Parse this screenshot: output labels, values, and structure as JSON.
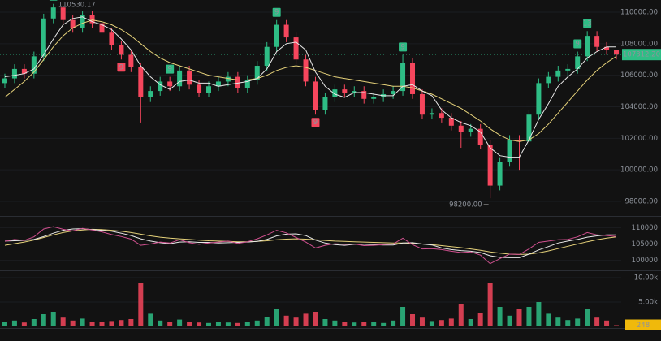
{
  "chart_data": {
    "type": "candlestick",
    "open": [
      105500,
      105800,
      106400,
      106100,
      107200,
      109600,
      110300,
      109500,
      109000,
      109800,
      109300,
      108700,
      107900,
      107300,
      106500,
      104600,
      105000,
      105600,
      105300,
      106300,
      105400,
      104900,
      105300,
      105600,
      105900,
      105200,
      105700,
      106600,
      107800,
      109200,
      108400,
      107000,
      105600,
      103800,
      104600,
      105100,
      104900,
      105000,
      104500,
      104600,
      104800,
      105000,
      106800,
      104800,
      103500,
      103600,
      103300,
      102800,
      102400,
      102600,
      101600,
      99000,
      100500,
      101900,
      101800,
      103500,
      105500,
      105900,
      106300,
      106400,
      107200,
      108500,
      107800,
      107600
    ],
    "high": [
      106100,
      106700,
      106700,
      107500,
      109900,
      110530.17,
      110400,
      109800,
      110100,
      110100,
      109600,
      109000,
      108200,
      107600,
      106800,
      105300,
      105900,
      105900,
      106600,
      106600,
      105700,
      105600,
      105900,
      106200,
      106200,
      106000,
      106900,
      108100,
      109500,
      109500,
      108700,
      107300,
      105900,
      104900,
      105400,
      105400,
      105300,
      105300,
      104900,
      105100,
      105300,
      107300,
      107100,
      105100,
      103900,
      103900,
      103600,
      103100,
      102900,
      102900,
      101900,
      100800,
      102200,
      102200,
      103800,
      105800,
      106200,
      106600,
      106700,
      107500,
      108800,
      108800,
      108100,
      107600
    ],
    "low": [
      105200,
      105500,
      105800,
      105800,
      106900,
      109300,
      109200,
      108700,
      108700,
      109000,
      108400,
      107600,
      107000,
      106200,
      103000,
      104300,
      104700,
      105000,
      105000,
      105100,
      104600,
      104600,
      105000,
      105300,
      104900,
      104900,
      105400,
      106300,
      107500,
      108100,
      106700,
      105300,
      103500,
      103500,
      104300,
      104600,
      104600,
      104200,
      104200,
      104300,
      104500,
      104700,
      104500,
      103200,
      103200,
      103000,
      102500,
      101400,
      102100,
      101300,
      98200,
      98700,
      100200,
      100000,
      101500,
      103200,
      105200,
      105600,
      106000,
      106100,
      106900,
      107500,
      107300,
      107000
    ],
    "close": [
      105800,
      106400,
      106100,
      107200,
      109600,
      110300,
      109500,
      109000,
      109800,
      109300,
      108700,
      107900,
      107300,
      106500,
      104600,
      105000,
      105600,
      105300,
      106300,
      105400,
      104900,
      105300,
      105600,
      105900,
      105200,
      105700,
      106600,
      107800,
      109200,
      108400,
      107000,
      105600,
      103800,
      104600,
      105100,
      104900,
      105000,
      104500,
      104600,
      104800,
      105000,
      106800,
      104800,
      103500,
      103600,
      103300,
      102800,
      102400,
      102600,
      101600,
      99000,
      100500,
      101900,
      101800,
      103500,
      105500,
      105900,
      106300,
      106400,
      107200,
      108500,
      107800,
      107600,
      107312.2
    ],
    "up_color": "#2ebd85",
    "down_color": "#f6465d",
    "ylim": [
      97124,
      110773
    ],
    "yticks": [
      {
        "value": 98000,
        "label": "98000.00"
      },
      {
        "value": 100000,
        "label": "100000.00"
      },
      {
        "value": 102000,
        "label": "102000.00"
      },
      {
        "value": 104000,
        "label": "104000.00"
      },
      {
        "value": 106000,
        "label": "106000.00"
      },
      {
        "value": 108000,
        "label": "108000.00"
      },
      {
        "value": 110000,
        "label": "110000.00"
      }
    ],
    "grid": true,
    "ma": [
      {
        "color": "#e6d27a",
        "values": [
          104600,
          105100,
          105600,
          106200,
          107000,
          107800,
          108500,
          109000,
          109300,
          109500,
          109400,
          109200,
          108900,
          108500,
          108000,
          107500,
          107100,
          106800,
          106600,
          106400,
          106200,
          106000,
          105900,
          105800,
          105700,
          105700,
          105800,
          106000,
          106300,
          106500,
          106600,
          106500,
          106300,
          106100,
          105900,
          105800,
          105700,
          105600,
          105500,
          105400,
          105300,
          105300,
          105200,
          105000,
          104800,
          104500,
          104200,
          103900,
          103500,
          103100,
          102600,
          102200,
          101900,
          101800,
          101900,
          102300,
          102900,
          103600,
          104300,
          105000,
          105700,
          106300,
          106800,
          107200
        ]
      },
      {
        "color": "#e8e8e8",
        "values": [
          105900,
          106000,
          106100,
          106400,
          107300,
          108300,
          109200,
          109600,
          109700,
          109400,
          109200,
          108900,
          108300,
          107600,
          106600,
          105900,
          105400,
          105100,
          105600,
          105700,
          105500,
          105500,
          105300,
          105400,
          105500,
          105600,
          105800,
          106400,
          107500,
          108000,
          108100,
          107600,
          106200,
          105300,
          104800,
          104600,
          104900,
          104900,
          104800,
          104700,
          104700,
          105300,
          105400,
          105000,
          104700,
          103800,
          103300,
          103000,
          102800,
          102400,
          101400,
          100900,
          100800,
          100800,
          101900,
          103200,
          104200,
          105300,
          105900,
          106400,
          107100,
          107500,
          107800,
          107800
        ]
      }
    ],
    "high_label": "110530.17",
    "low_label": "98200.00",
    "last_price_label": "107312.20",
    "markers": [
      {
        "index": 5,
        "label": "9",
        "position": "above",
        "color": "#2ebd85"
      },
      {
        "index": 12,
        "label": "9",
        "position": "below",
        "color": "#f6465d"
      },
      {
        "index": 17,
        "label": "9",
        "position": "above",
        "color": "#2ebd85"
      },
      {
        "index": 28,
        "label": "9",
        "position": "above",
        "color": "#2ebd85"
      },
      {
        "index": 32,
        "label": "9",
        "position": "below",
        "color": "#f6465d"
      },
      {
        "index": 41,
        "label": "9",
        "position": "above",
        "color": "#2ebd85"
      },
      {
        "index": 59,
        "label": "9",
        "position": "above",
        "color": "#2ebd85"
      },
      {
        "index": 60,
        "label": "13",
        "position": "above",
        "color": "#2ebd85"
      }
    ],
    "overlay": {
      "ylim": [
        97180,
        113080
      ],
      "yticks": [
        100000,
        105000,
        110000
      ],
      "line_color": "#d0508f"
    },
    "volume": {
      "values": [
        900,
        1200,
        800,
        1500,
        2500,
        3000,
        1800,
        1200,
        1600,
        1000,
        900,
        1100,
        1300,
        1500,
        9000,
        2600,
        1200,
        900,
        1400,
        1000,
        800,
        700,
        900,
        800,
        700,
        900,
        1200,
        2000,
        3500,
        2200,
        1800,
        2600,
        3000,
        1500,
        1200,
        900,
        800,
        1000,
        900,
        700,
        1200,
        4000,
        2500,
        1800,
        1100,
        1300,
        1600,
        4500,
        1500,
        2800,
        9000,
        4000,
        2200,
        3500,
        4000,
        5000,
        2600,
        1800,
        1300,
        1600,
        3500,
        1800,
        1200,
        248
      ],
      "ylim": [
        0,
        11000
      ],
      "yticks": [
        {
          "value": 5000,
          "label": "5.00k"
        },
        {
          "value": 10000,
          "label": "10.00k"
        }
      ],
      "badge_color": "#f0b90b"
    }
  }
}
